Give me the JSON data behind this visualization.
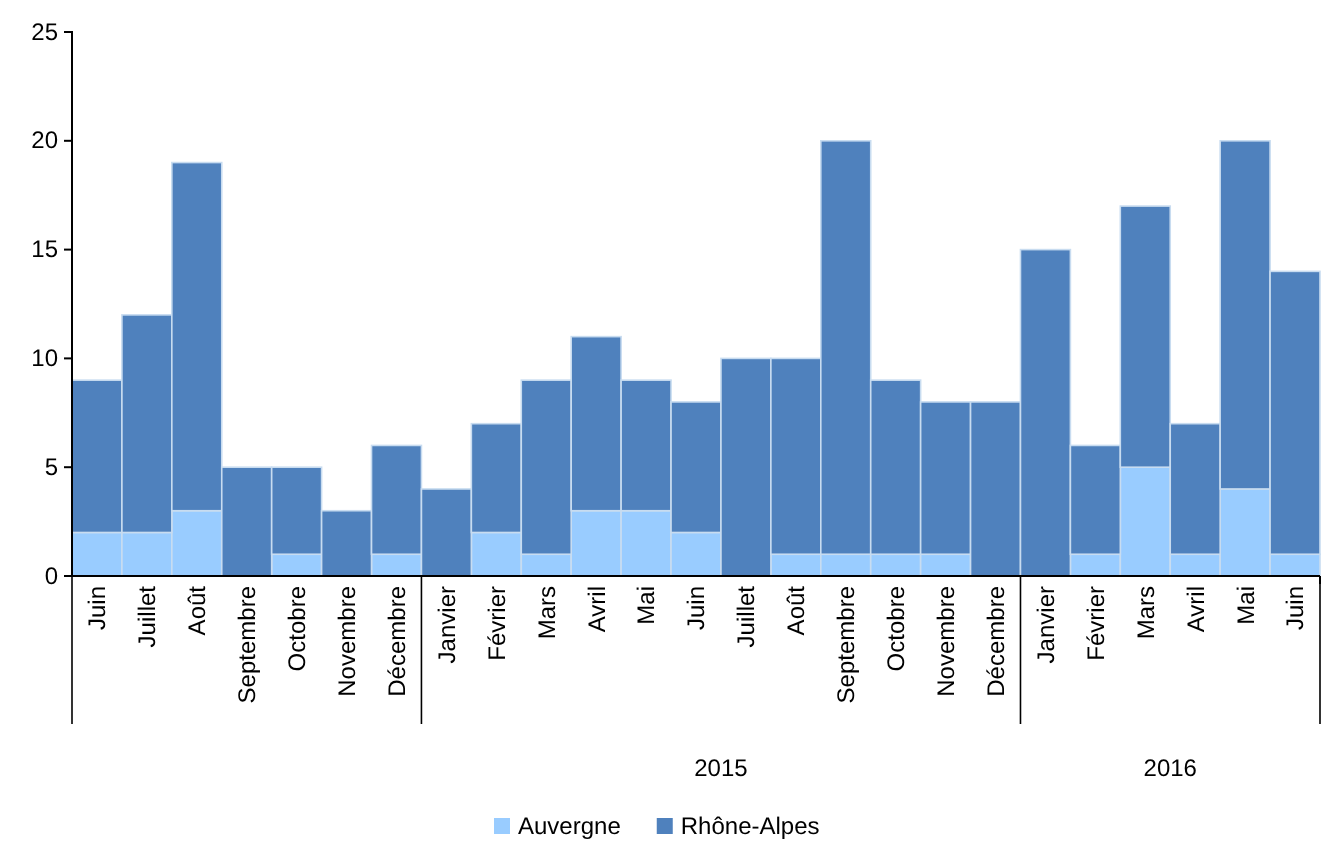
{
  "chart_data": {
    "type": "bar",
    "stacked": true,
    "categories": [
      "Juin",
      "Juillet",
      "Août",
      "Septembre",
      "Octobre",
      "Novembre",
      "Décembre",
      "Janvier",
      "Février",
      "Mars",
      "Avril",
      "Mai",
      "Juin",
      "Juillet",
      "Août",
      "Septembre",
      "Octobre",
      "Novembre",
      "Décembre",
      "Janvier",
      "Février",
      "Mars",
      "Avril",
      "Mai",
      "Juin"
    ],
    "series": [
      {
        "name": "Auvergne",
        "color": "#99ccff",
        "values": [
          2,
          2,
          3,
          0,
          1,
          0,
          1,
          0,
          2,
          1,
          3,
          3,
          2,
          0,
          1,
          1,
          1,
          1,
          0,
          0,
          1,
          5,
          1,
          4,
          1
        ]
      },
      {
        "name": "Rhône-Alpes",
        "color": "#4f81bd",
        "values": [
          7,
          10,
          16,
          5,
          4,
          3,
          5,
          4,
          5,
          8,
          8,
          6,
          6,
          10,
          9,
          19,
          8,
          7,
          8,
          15,
          5,
          12,
          6,
          16,
          13
        ]
      }
    ],
    "ylim": [
      0,
      25
    ],
    "yticks": [
      0,
      5,
      10,
      15,
      20,
      25
    ],
    "grid": false,
    "legend": "bottom",
    "annotations": [
      "2015",
      "2016"
    ]
  }
}
